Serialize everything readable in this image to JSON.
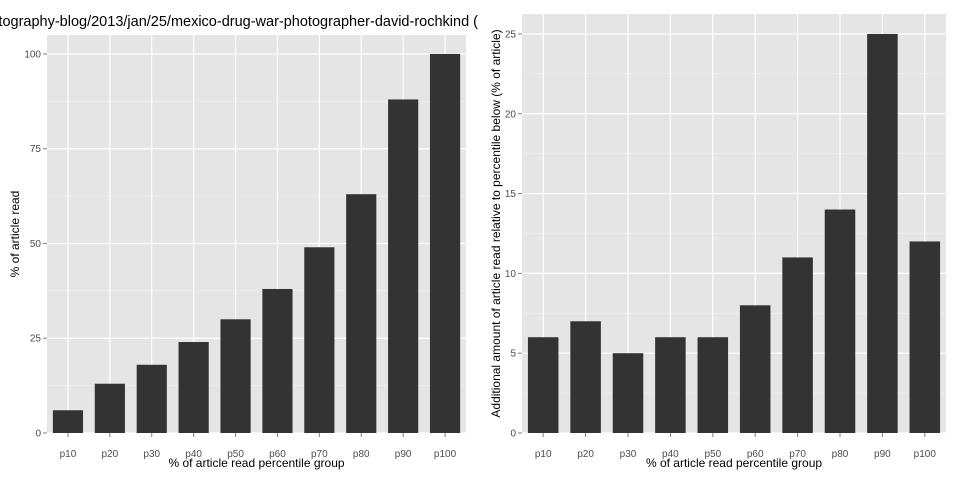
{
  "chart_data": [
    {
      "type": "bar",
      "title": "otography-blog/2013/jan/25/mexico-drug-war-photographer-david-rochkind (",
      "xlabel": "% of article read percentile group",
      "ylabel": "% of article read",
      "categories": [
        "p10",
        "p20",
        "p30",
        "p40",
        "p50",
        "p60",
        "p70",
        "p80",
        "p90",
        "p100"
      ],
      "values": [
        6,
        13,
        18,
        24,
        30,
        38,
        49,
        63,
        88,
        100
      ],
      "ylim": [
        0,
        105
      ],
      "yticks": [
        0,
        25,
        50,
        75,
        100
      ],
      "grid": true,
      "bar_color": "#333333",
      "panel_color": "#e5e5e5"
    },
    {
      "type": "bar",
      "title": "",
      "xlabel": "% of article read percentile group",
      "ylabel": "Additional amount of article read relative to percentile below (% of article)",
      "categories": [
        "p10",
        "p20",
        "p30",
        "p40",
        "p50",
        "p60",
        "p70",
        "p80",
        "p90",
        "p100"
      ],
      "values": [
        6,
        7,
        5,
        6,
        6,
        8,
        11,
        14,
        25,
        12
      ],
      "ylim": [
        0,
        26.25
      ],
      "yticks": [
        0,
        5,
        10,
        15,
        20,
        25
      ],
      "grid": true,
      "bar_color": "#333333",
      "panel_color": "#e5e5e5"
    }
  ]
}
